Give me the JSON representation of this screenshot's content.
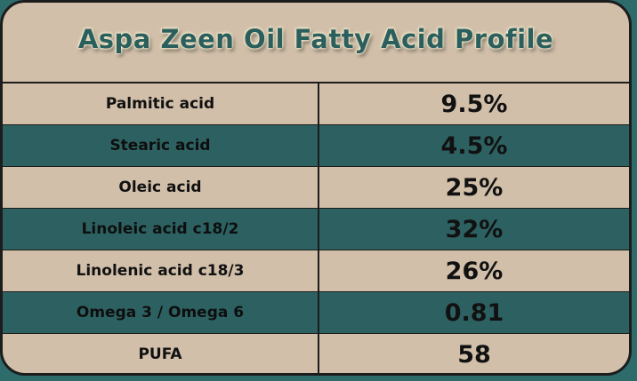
{
  "chart_data": {
    "type": "table",
    "title": "Aspa Zeen Oil Fatty Acid Profile",
    "rows": [
      {
        "label": "Palmitic acid",
        "value": "9.5%"
      },
      {
        "label": "Stearic acid",
        "value": "4.5%"
      },
      {
        "label": "Oleic acid",
        "value": "25%"
      },
      {
        "label": "Linoleic acid c18/2",
        "value": "32%"
      },
      {
        "label": "Linolenic acid c18/3",
        "value": "26%"
      },
      {
        "label": "Omega 3 / Omega 6",
        "value": "0.81"
      },
      {
        "label": "PUFA",
        "value": "58"
      }
    ]
  },
  "colors": {
    "background": "#d1bfa9",
    "band": "#2d6161",
    "title": "#2b5f5e",
    "border": "#1c1c1c"
  }
}
